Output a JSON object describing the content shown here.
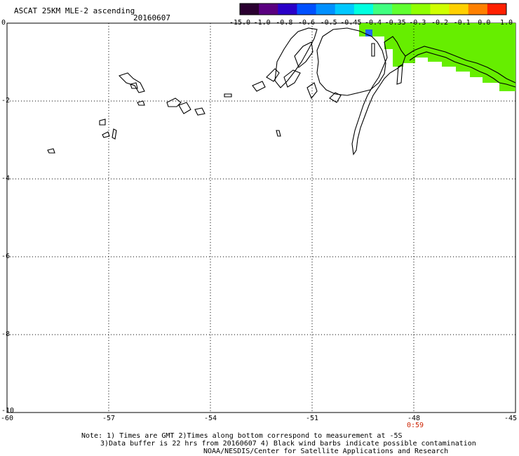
{
  "header": {
    "title": "ASCAT 25KM MLE-2 ascending",
    "date": "20160607"
  },
  "colorbar": {
    "labels": [
      "-15.0",
      "-1.0",
      "-0.8",
      "-0.6",
      "-0.5",
      "-0.45",
      "-0.4",
      "-0.35",
      "-0.3",
      "-0.2",
      "-0.1",
      "0.0",
      "1.0"
    ],
    "colors": [
      "#2a0030",
      "#5a0080",
      "#2a00c8",
      "#0050ff",
      "#0090ff",
      "#00c8ff",
      "#00ffe0",
      "#40ff80",
      "#60ff30",
      "#90ff00",
      "#d0ff00",
      "#ffd000",
      "#ff8000",
      "#ff2000"
    ]
  },
  "map": {
    "y_ticks": [
      "0",
      "-2",
      "-4",
      "-6",
      "-8",
      "-10"
    ],
    "x_ticks": [
      "-60",
      "-57",
      "-54",
      "-51",
      "-48",
      "-45"
    ],
    "time_label": "0:59",
    "data_color": "#66ee00",
    "blue_spot_color": "#2266ff"
  },
  "footer": {
    "line1": "Note: 1) Times are GMT 2)Times along bottom correspond to measurement at -5S",
    "line2": "3)Data buffer is 22 hrs from 20160607 4) Black wind barbs indicate possible contamination",
    "line3": "NOAA/NESDIS/Center for Satellite Applications and Research"
  }
}
